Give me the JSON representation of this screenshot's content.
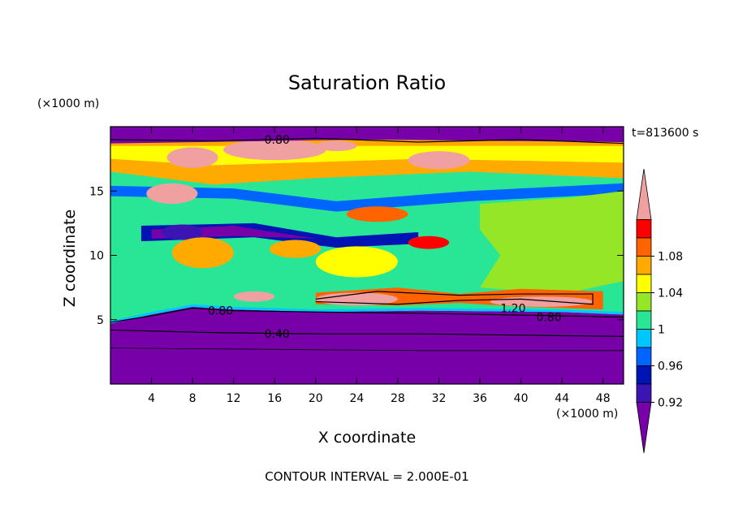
{
  "chart_data": {
    "type": "heatmap",
    "title": "Saturation Ratio",
    "xlabel": "X coordinate",
    "ylabel": "Z coordinate",
    "x_unit": "(×1000 m)",
    "y_unit": "(×1000 m)",
    "time_label": "t=813600 s",
    "footer": "CONTOUR INTERVAL = 2.000E-01",
    "xlim": [
      0,
      50
    ],
    "ylim": [
      0,
      20
    ],
    "x_ticks": [
      "4",
      "8",
      "12",
      "16",
      "20",
      "24",
      "28",
      "32",
      "36",
      "40",
      "44",
      "48"
    ],
    "y_ticks": [
      "5",
      "10",
      "15"
    ],
    "colorbar": {
      "labels": [
        "0.92",
        "0.96",
        "1",
        "1.04",
        "1.08"
      ],
      "bins": [
        {
          "min": null,
          "max": 0.9,
          "color": "#7800a8"
        },
        {
          "min": 0.9,
          "max": 0.92,
          "color": "#3c14b4"
        },
        {
          "min": 0.92,
          "max": 0.94,
          "color": "#0014b4"
        },
        {
          "min": 0.94,
          "max": 0.96,
          "color": "#0064ff"
        },
        {
          "min": 0.96,
          "max": 0.98,
          "color": "#00c8ff"
        },
        {
          "min": 0.98,
          "max": 1.0,
          "color": "#28e696"
        },
        {
          "min": 1.0,
          "max": 1.02,
          "color": "#96e628"
        },
        {
          "min": 1.02,
          "max": 1.04,
          "color": "#ffff00"
        },
        {
          "min": 1.04,
          "max": 1.06,
          "color": "#ffaa00"
        },
        {
          "min": 1.06,
          "max": 1.08,
          "color": "#ff6400"
        },
        {
          "min": 1.08,
          "max": 1.1,
          "color": "#ff0000"
        },
        {
          "min": 1.1,
          "max": null,
          "color": "#f0a0a0"
        }
      ]
    },
    "contour_labels": [
      "0.80",
      "0.80",
      "0.40",
      "1.20",
      "0.80"
    ],
    "regions": [
      {
        "name": "lower-dry-layer",
        "z_range": [
          0,
          5.5
        ],
        "ratio": "< 0.90"
      },
      {
        "name": "near-saturated-mid-layer",
        "z_range": [
          5.5,
          12
        ],
        "ratio": "0.98–1.02"
      },
      {
        "name": "supersaturated-base",
        "x_range": [
          20,
          48
        ],
        "z_range": [
          6,
          7
        ],
        "ratio": "> 1.10"
      },
      {
        "name": "upper-supersaturated-band",
        "z_range": [
          16,
          19
        ],
        "ratio": "1.04–1.12"
      },
      {
        "name": "top-dry-layer",
        "z_range": [
          19,
          20
        ],
        "ratio": "< 0.90"
      }
    ]
  }
}
